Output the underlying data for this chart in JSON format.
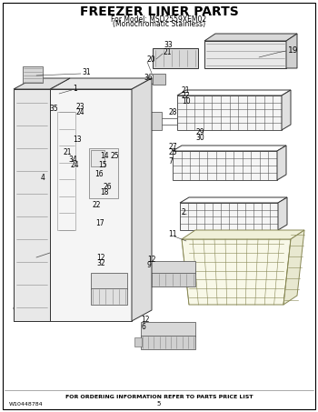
{
  "title_line1": "FREEZER LINER PARTS",
  "title_line2": "For Model: MSD2559XEM02",
  "title_line3": "(Monochromatic Stainless)",
  "footer_left": "W10448784",
  "footer_center": "FOR ORDERING INFORMATION REFER TO PARTS PRICE LIST",
  "footer_page": "5",
  "bg_color": "#ffffff",
  "border_color": "#000000"
}
